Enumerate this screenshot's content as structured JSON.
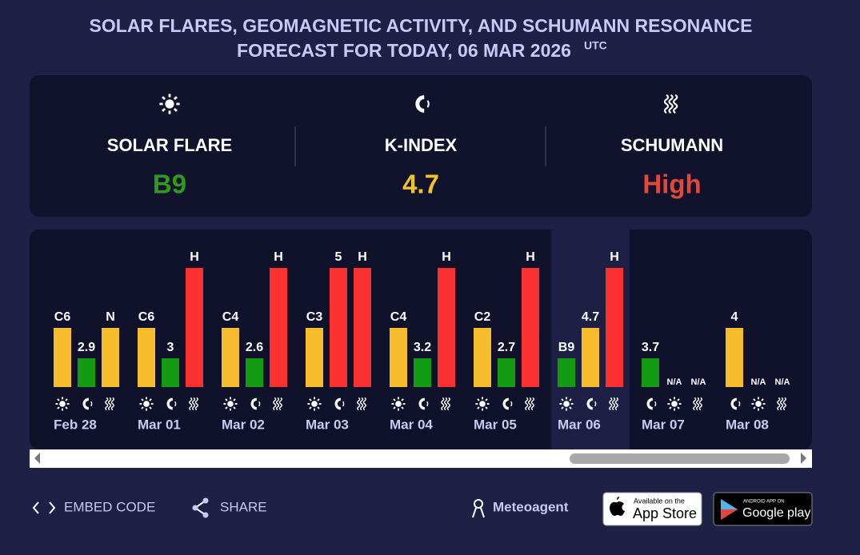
{
  "header": {
    "title_lines": [
      "SOLAR FLARES, GEOMAGNETIC ACTIVITY, AND SCHUMANN RESONANCE",
      "FORECAST FOR TODAY, 06 MAR 2026"
    ],
    "title_sup": "UTC"
  },
  "summary": [
    {
      "label": "SOLAR FLARE",
      "value": "B9",
      "color": "#2f9a1e"
    },
    {
      "label": "K-INDEX",
      "value": 4.7,
      "color": "#f2c12e"
    },
    {
      "label": "SCHUMANN",
      "value": "High",
      "color": "#e2483a"
    }
  ],
  "days": [
    {
      "date": "Feb 28",
      "items": [
        {
          "kind": "flare",
          "label": "C6",
          "color": "#f7bd2c"
        },
        {
          "kind": "kindex",
          "label": 2.9,
          "color": "#139c13"
        },
        {
          "kind": "schumann",
          "label": "N",
          "color": "#f7bd2c"
        }
      ]
    },
    {
      "date": "Mar 01",
      "items": [
        {
          "kind": "flare",
          "label": "C6",
          "color": "#f7bd2c"
        },
        {
          "kind": "kindex",
          "label": 3,
          "color": "#139c13"
        },
        {
          "kind": "schumann",
          "label": "H",
          "color": "#fb3030"
        }
      ]
    },
    {
      "date": "Mar 02",
      "items": [
        {
          "kind": "flare",
          "label": "C4",
          "color": "#f7bd2c"
        },
        {
          "kind": "kindex",
          "label": 2.6,
          "color": "#139c13"
        },
        {
          "kind": "schumann",
          "label": "H",
          "color": "#fb3030"
        }
      ]
    },
    {
      "date": "Mar 03",
      "items": [
        {
          "kind": "flare",
          "label": "C3",
          "color": "#f7bd2c"
        },
        {
          "kind": "kindex",
          "label": 5,
          "color": "#fb3030"
        },
        {
          "kind": "schumann",
          "label": "H",
          "color": "#fb3030"
        }
      ]
    },
    {
      "date": "Mar 04",
      "items": [
        {
          "kind": "flare",
          "label": "C4",
          "color": "#f7bd2c"
        },
        {
          "kind": "kindex",
          "label": 3.2,
          "color": "#139c13"
        },
        {
          "kind": "schumann",
          "label": "H",
          "color": "#fb3030"
        }
      ]
    },
    {
      "date": "Mar 05",
      "items": [
        {
          "kind": "flare",
          "label": "C2",
          "color": "#f7bd2c"
        },
        {
          "kind": "kindex",
          "label": 2.7,
          "color": "#139c13"
        },
        {
          "kind": "schumann",
          "label": "H",
          "color": "#fb3030"
        }
      ]
    },
    {
      "date": "Mar 06",
      "selected": true,
      "items": [
        {
          "kind": "flare",
          "label": "B9",
          "color": "#139c13"
        },
        {
          "kind": "kindex",
          "label": 4.7,
          "color": "#f7bd2c"
        },
        {
          "kind": "schumann",
          "label": "H",
          "color": "#fb3030"
        }
      ]
    },
    {
      "date": "Mar 07",
      "items": [
        {
          "kind": "kindex",
          "label": 3.7,
          "color": "#139c13"
        },
        {
          "kind": "flare",
          "label": "N/A"
        },
        {
          "kind": "schumann",
          "label": "N/A"
        }
      ]
    },
    {
      "date": "Mar 08",
      "items": [
        {
          "kind": "kindex",
          "label": 4,
          "color": "#f7bd2c"
        },
        {
          "kind": "flare",
          "label": "N/A"
        },
        {
          "kind": "schumann",
          "label": "N/A"
        }
      ]
    }
  ],
  "footer": {
    "embed": "EMBED CODE",
    "share": "SHARE",
    "brand": "Meteoagent",
    "app_store": {
      "small": "Available on the",
      "big": "App Store"
    },
    "google_play": {
      "small": "ANDROID APP ON",
      "big": "Google play"
    }
  }
}
